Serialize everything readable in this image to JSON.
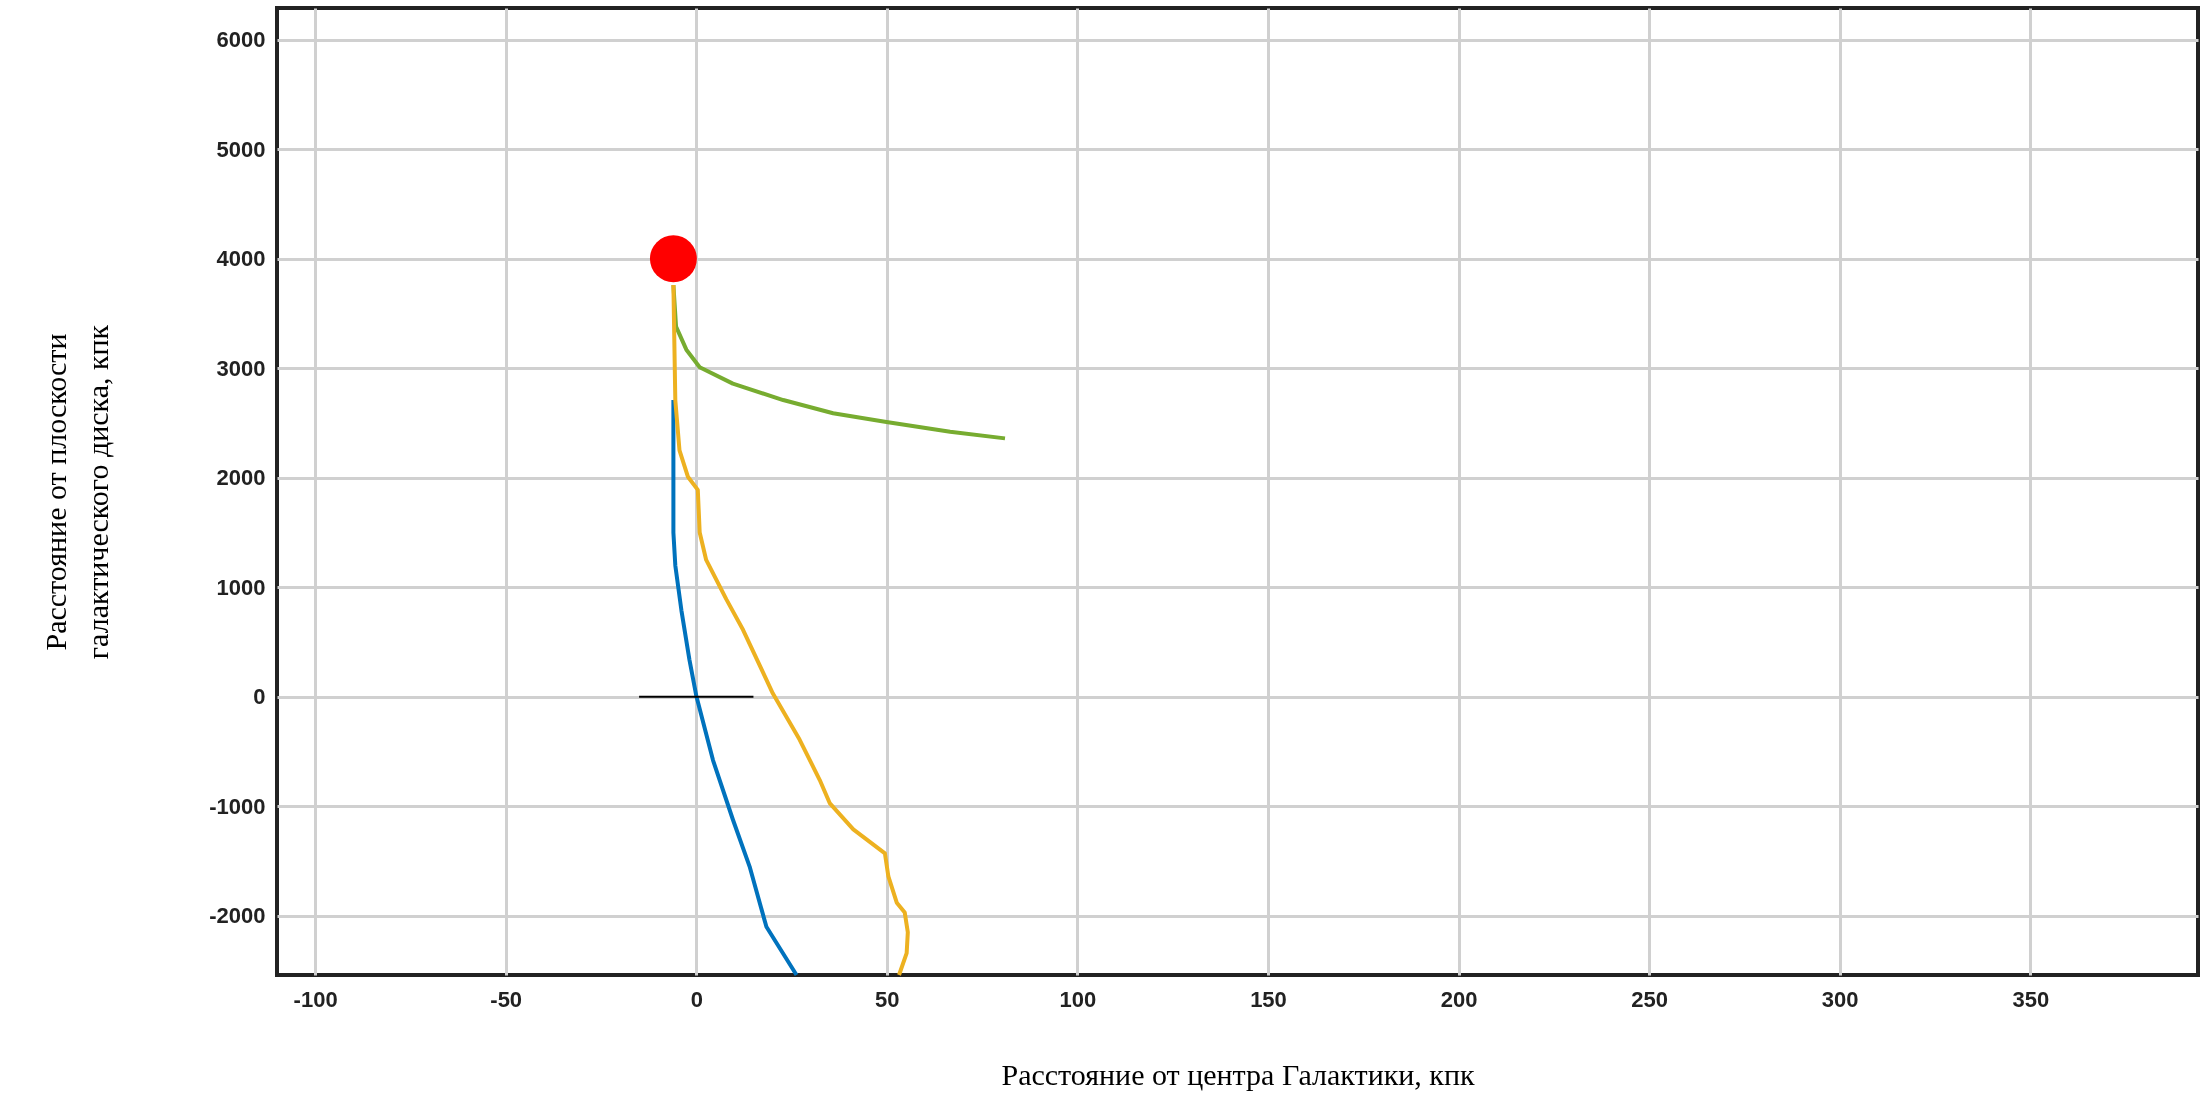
{
  "chart_data": {
    "type": "line",
    "xlabel": "Расстояние от центра Галактики, кпк",
    "ylabel": "Расстояние от плоскости\nгалактического диска, кпк",
    "xlim": [
      -110,
      394
    ],
    "ylim": [
      -2540,
      6290
    ],
    "xticks": [
      -100,
      -50,
      0,
      50,
      100,
      150,
      200,
      250,
      300,
      350
    ],
    "yticks": [
      -2000,
      -1000,
      0,
      1000,
      2000,
      3000,
      4000,
      5000,
      6000
    ],
    "grid": true,
    "line_style": "solid",
    "series": [
      {
        "color": "#0072bd",
        "x": [
          -6,
          -6,
          -5.5,
          -3.9,
          -1.8,
          0,
          4.4,
          9.6,
          14.0,
          18.4,
          26.3
        ],
        "values": [
          2710,
          1500,
          1200,
          790,
          340,
          10,
          -580,
          -1120,
          -1550,
          -2100,
          -2540
        ]
      },
      {
        "color": "#77ac30",
        "x": [
          -6,
          -5.3,
          -2.6,
          0.9,
          9.6,
          22.8,
          35.9,
          49.9,
          66.6,
          81.0
        ],
        "values": [
          3760,
          3380,
          3170,
          3010,
          2860,
          2710,
          2590,
          2510,
          2420,
          2360
        ]
      },
      {
        "color": "#edb120",
        "x": [
          -6,
          -5.5,
          -4.4,
          -2.2,
          0.4,
          0.9,
          2.6,
          7.9,
          12.3,
          20.1,
          27.1,
          32.4,
          35.0,
          41.2,
          49.5,
          50.4,
          52.6,
          54.7,
          55.5,
          55.2,
          53.2
        ],
        "values": [
          3760,
          2710,
          2250,
          2010,
          1890,
          1500,
          1250,
          890,
          610,
          30,
          -390,
          -760,
          -970,
          -1210,
          -1430,
          -1640,
          -1880,
          -1970,
          -2150,
          -2340,
          -2540
        ]
      },
      {
        "type": "line",
        "color": "#000000",
        "x": [
          -15,
          15
        ],
        "values": [
          0,
          0
        ]
      },
      {
        "type": "scatter",
        "color": "#ff0000",
        "x": [
          -6
        ],
        "values": [
          4000
        ]
      }
    ]
  }
}
